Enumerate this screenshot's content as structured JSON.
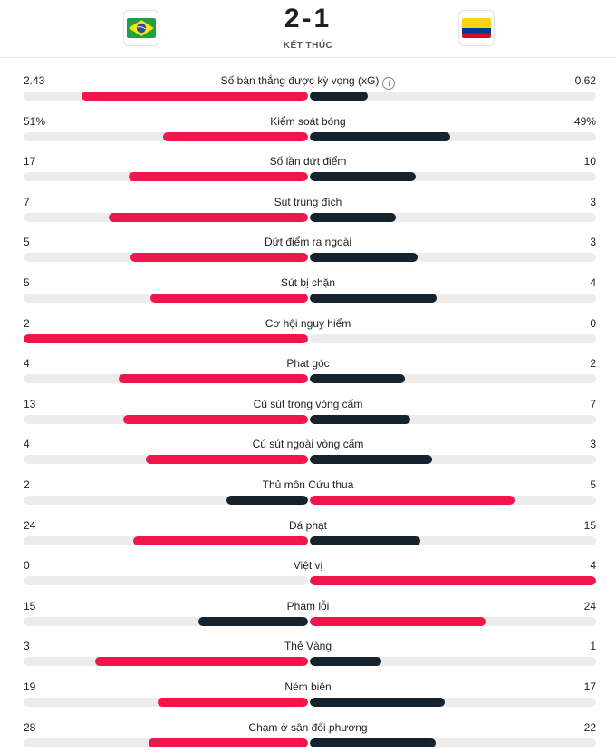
{
  "match": {
    "score": "2-1",
    "status": "KẾT THÚC",
    "home_flag_icon": "brazil-flag-icon",
    "away_flag_icon": "colombia-flag-icon"
  },
  "colors": {
    "leader": "#f0154a",
    "trailer": "#15232e",
    "track": "#ececec"
  },
  "stats": [
    {
      "label": "Số bàn thắng được kỳ vọng (xG)",
      "home": "2.43",
      "away": "0.62",
      "home_val": 2.43,
      "away_val": 0.62,
      "info": true
    },
    {
      "label": "Kiểm soát bóng",
      "home": "51%",
      "away": "49%",
      "home_val": 51,
      "away_val": 49
    },
    {
      "label": "Số lần dứt điểm",
      "home": "17",
      "away": "10",
      "home_val": 17,
      "away_val": 10
    },
    {
      "label": "Sút trúng đích",
      "home": "7",
      "away": "3",
      "home_val": 7,
      "away_val": 3
    },
    {
      "label": "Dứt điểm ra ngoài",
      "home": "5",
      "away": "3",
      "home_val": 5,
      "away_val": 3
    },
    {
      "label": "Sút bị chặn",
      "home": "5",
      "away": "4",
      "home_val": 5,
      "away_val": 4
    },
    {
      "label": "Cơ hội nguy hiểm",
      "home": "2",
      "away": "0",
      "home_val": 2,
      "away_val": 0
    },
    {
      "label": "Phạt góc",
      "home": "4",
      "away": "2",
      "home_val": 4,
      "away_val": 2
    },
    {
      "label": "Cú sút trong vòng cấm",
      "home": "13",
      "away": "7",
      "home_val": 13,
      "away_val": 7
    },
    {
      "label": "Cú sút ngoài vòng cấm",
      "home": "4",
      "away": "3",
      "home_val": 4,
      "away_val": 3
    },
    {
      "label": "Thủ môn Cứu thua",
      "home": "2",
      "away": "5",
      "home_val": 2,
      "away_val": 5
    },
    {
      "label": "Đá phạt",
      "home": "24",
      "away": "15",
      "home_val": 24,
      "away_val": 15
    },
    {
      "label": "Việt vị",
      "home": "0",
      "away": "4",
      "home_val": 0,
      "away_val": 4
    },
    {
      "label": "Phạm lỗi",
      "home": "15",
      "away": "24",
      "home_val": 15,
      "away_val": 24
    },
    {
      "label": "Thẻ Vàng",
      "home": "3",
      "away": "1",
      "home_val": 3,
      "away_val": 1
    },
    {
      "label": "Ném biên",
      "home": "19",
      "away": "17",
      "home_val": 19,
      "away_val": 17
    },
    {
      "label": "Chạm ở sân đối phương",
      "home": "28",
      "away": "22",
      "home_val": 28,
      "away_val": 22
    }
  ]
}
